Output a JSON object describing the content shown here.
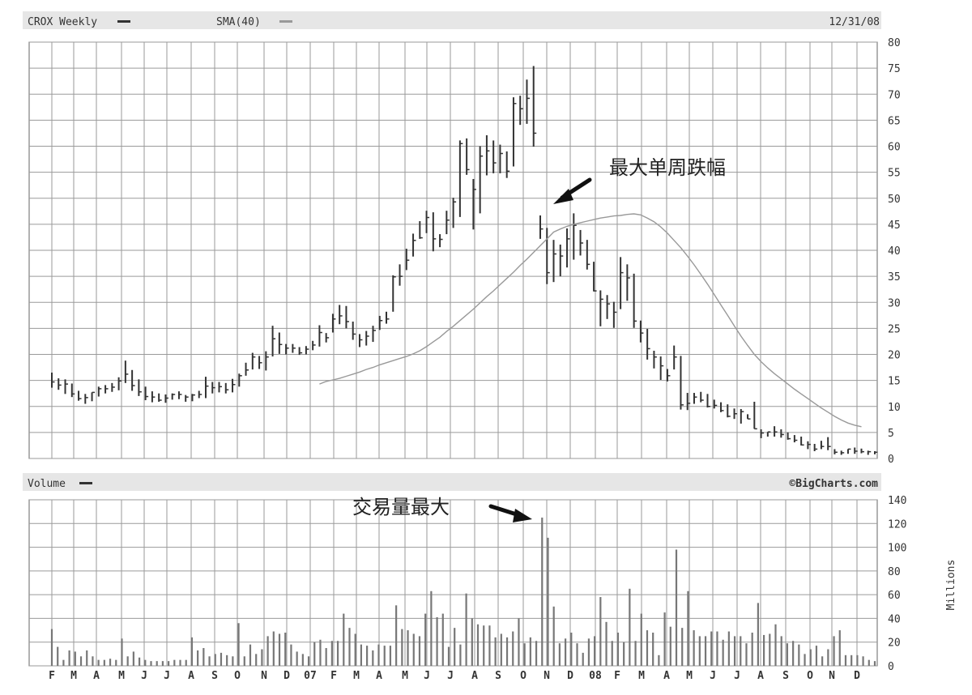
{
  "chart_data": [
    {
      "type": "ohlc",
      "title": "CROX Weekly",
      "date": "12/31/08",
      "indicator": "SMA(40)",
      "ylim": [
        0,
        80
      ],
      "y_ticks": [
        0,
        5,
        10,
        15,
        20,
        25,
        30,
        35,
        40,
        45,
        50,
        55,
        60,
        65,
        70,
        75,
        80
      ],
      "x_month_labels": [
        "F",
        "M",
        "A",
        "M",
        "J",
        "J",
        "A",
        "S",
        "O",
        "N",
        "D",
        "07",
        "F",
        "M",
        "A",
        "M",
        "J",
        "J",
        "A",
        "S",
        "O",
        "N",
        "D",
        "08",
        "F",
        "M",
        "A",
        "M",
        "J",
        "J",
        "A",
        "S",
        "O",
        "N",
        "D"
      ],
      "grid": true,
      "series": [
        {
          "name": "CROX Weekly",
          "high": [
            16.5,
            15.4,
            15.2,
            14.4,
            13.0,
            12.4,
            12.7,
            13.8,
            14.1,
            14.5,
            15.6,
            18.8,
            17.0,
            15.2,
            13.8,
            12.9,
            12.5,
            12.3,
            12.5,
            12.9,
            12.2,
            12.4,
            13.0,
            15.7,
            14.7,
            14.7,
            14.5,
            15.3,
            16.3,
            18.4,
            20.3,
            19.7,
            20.6,
            25.5,
            24.2,
            22.0,
            22.0,
            21.4,
            21.6,
            22.6,
            25.6,
            24.1,
            27.8,
            29.5,
            29.3,
            26.3,
            23.9,
            24.5,
            25.5,
            27.4,
            28.2,
            35.2,
            37.3,
            40.3,
            43.2,
            45.6,
            47.6,
            47.3,
            43.1,
            47.6,
            50.1,
            61.1,
            61.5,
            53.7,
            60.0,
            62.1,
            61.1,
            60.3,
            59.0,
            69.4,
            69.7,
            72.8,
            75.4,
            46.7,
            44.3,
            42.0,
            41.1,
            44.2,
            47.1,
            43.9,
            42.0,
            37.8,
            32.3,
            31.4,
            30.1,
            38.7,
            37.3,
            35.5,
            26.5,
            24.9,
            20.7,
            19.6,
            17.2,
            21.7,
            19.7,
            12.6,
            12.6,
            12.8,
            12.4,
            11.3,
            10.8,
            10.4,
            9.6,
            9.5,
            8.5,
            10.9,
            5.6,
            5.1,
            6.2,
            5.6,
            5.0,
            4.5,
            4.2,
            3.3,
            2.8,
            3.4,
            4.1,
            1.8,
            1.5,
            1.8,
            2.1,
            1.9,
            1.5,
            1.4
          ],
          "low": [
            13.6,
            13.2,
            12.4,
            11.8,
            11.1,
            10.5,
            11.0,
            11.9,
            12.5,
            12.8,
            13.1,
            14.5,
            13.0,
            12.0,
            11.2,
            10.8,
            10.9,
            10.7,
            11.3,
            11.4,
            10.9,
            11.0,
            11.6,
            11.6,
            12.5,
            12.7,
            12.5,
            12.7,
            13.8,
            15.9,
            17.1,
            17.2,
            16.9,
            19.6,
            20.1,
            20.0,
            20.3,
            19.9,
            20.0,
            20.8,
            21.5,
            22.3,
            24.2,
            25.8,
            25.0,
            22.8,
            21.4,
            21.7,
            22.4,
            24.7,
            25.9,
            28.2,
            33.2,
            36.2,
            38.8,
            42.2,
            43.3,
            39.8,
            40.6,
            43.1,
            44.3,
            46.4,
            54.5,
            44.0,
            47.1,
            54.4,
            54.8,
            54.8,
            53.9,
            56.1,
            64.1,
            64.3,
            59.9,
            42.2,
            33.5,
            33.9,
            35.0,
            36.7,
            38.2,
            39.0,
            36.3,
            32.1,
            25.4,
            26.8,
            25.1,
            28.7,
            30.3,
            25.1,
            22.3,
            19.0,
            17.3,
            15.1,
            14.8,
            17.1,
            9.4,
            9.3,
            10.5,
            10.8,
            9.8,
            9.6,
            8.9,
            7.9,
            7.6,
            6.7,
            7.6,
            5.7,
            3.9,
            4.2,
            4.2,
            4.0,
            3.6,
            3.1,
            2.5,
            1.8,
            1.4,
            1.8,
            1.6,
            0.8,
            0.7,
            0.9,
            0.9,
            1.0,
            0.7,
            0.8
          ],
          "close": [
            14.7,
            14.1,
            14.3,
            12.4,
            11.5,
            11.7,
            12.7,
            13.4,
            13.4,
            13.7,
            14.9,
            16.2,
            14.0,
            12.8,
            11.9,
            11.8,
            11.2,
            11.6,
            12.3,
            12.3,
            11.8,
            12.2,
            12.3,
            13.9,
            13.6,
            13.8,
            13.2,
            14.2,
            15.9,
            17.0,
            19.5,
            18.4,
            19.5,
            23.0,
            21.9,
            21.2,
            21.2,
            20.3,
            21.0,
            21.8,
            24.2,
            23.2,
            26.8,
            27.4,
            26.3,
            23.9,
            22.8,
            23.5,
            24.6,
            26.5,
            26.8,
            34.9,
            35.0,
            38.1,
            41.9,
            42.4,
            46.3,
            42.2,
            42.1,
            45.8,
            49.3,
            60.5,
            55.5,
            51.7,
            58.1,
            59.1,
            56.8,
            58.6,
            55.2,
            68.2,
            67.2,
            69.2,
            62.5,
            44.1,
            35.7,
            39.3,
            38.9,
            42.2,
            44.8,
            41.4,
            37.3,
            32.2,
            30.6,
            29.7,
            28.1,
            35.7,
            34.7,
            26.4,
            24.1,
            21.1,
            19.5,
            17.8,
            15.9,
            19.5,
            10.3,
            10.6,
            11.8,
            11.2,
            10.0,
            10.2,
            9.2,
            8.1,
            8.6,
            9.0,
            7.6,
            5.7,
            4.9,
            5.1,
            5.1,
            4.6,
            3.8,
            3.5,
            2.6,
            2.7,
            1.8,
            2.3,
            2.3,
            1.2,
            1.1,
            1.8,
            1.4,
            1.3,
            1.3,
            1.2
          ]
        },
        {
          "name": "SMA(40)",
          "start_week": 40,
          "values": [
            14.3,
            14.8,
            15.1,
            15.4,
            15.8,
            16.2,
            16.6,
            17.1,
            17.5,
            18.0,
            18.4,
            18.8,
            19.2,
            19.6,
            20.1,
            20.7,
            21.5,
            22.4,
            23.3,
            24.4,
            25.4,
            26.5,
            27.6,
            28.7,
            29.9,
            31.1,
            32.2,
            33.4,
            34.6,
            35.8,
            37.1,
            38.3,
            39.6,
            40.9,
            42.2,
            43.5,
            44.1,
            44.6,
            45.0,
            45.3,
            45.6,
            45.9,
            46.2,
            46.4,
            46.6,
            46.7,
            46.9,
            47.0,
            46.8,
            46.2,
            45.5,
            44.5,
            43.3,
            41.9,
            40.5,
            38.9,
            37.2,
            35.4,
            33.5,
            31.5,
            29.5,
            27.5,
            25.5,
            23.5,
            21.7,
            20.0,
            18.6,
            17.4,
            16.3,
            15.3,
            14.3,
            13.3,
            12.4,
            11.5,
            10.6,
            9.7,
            8.9,
            8.1,
            7.4,
            6.8,
            6.4,
            6.1
          ]
        }
      ],
      "annotation": "最大单周跌幅"
    },
    {
      "type": "bar",
      "title": "Volume",
      "ylabel": "Millions",
      "ylim": [
        0,
        140
      ],
      "y_ticks": [
        0,
        20,
        40,
        60,
        80,
        100,
        120,
        140
      ],
      "grid": true,
      "values": [
        31,
        16,
        5,
        13,
        12,
        8,
        13,
        8,
        5,
        5,
        6,
        5,
        23,
        8,
        12,
        7,
        5,
        4,
        4,
        4,
        4,
        5,
        5,
        5,
        24,
        13,
        15,
        8,
        10,
        11,
        9,
        8,
        36,
        8,
        18,
        10,
        14,
        25,
        29,
        27,
        28,
        18,
        12,
        10,
        8,
        20,
        22,
        15,
        21,
        21,
        44,
        32,
        27,
        18,
        17,
        13,
        18,
        17,
        17,
        51,
        31,
        30,
        27,
        25,
        44,
        63,
        41,
        44,
        16,
        32,
        18,
        61,
        40,
        35,
        34,
        34,
        24,
        27,
        24,
        29,
        40,
        19,
        24,
        21,
        125,
        108,
        50,
        19,
        23,
        28,
        19,
        11,
        23,
        25,
        58,
        37,
        21,
        28,
        20,
        65,
        21,
        44,
        30,
        28,
        9,
        45,
        33,
        98,
        32,
        63,
        30,
        25,
        25,
        29,
        29,
        22,
        29,
        25,
        25,
        19,
        28,
        53,
        26,
        27,
        35,
        25,
        19,
        21,
        18,
        10,
        14,
        17,
        8,
        14,
        25,
        30,
        9,
        9,
        9,
        8,
        5,
        4
      ],
      "annotation": "交易量最大"
    }
  ],
  "footer": {
    "credit": "©BigCharts.com"
  },
  "colors": {
    "background": "#ffffff",
    "header_band": "#e6e6e6",
    "grid": "#9a9a9a",
    "bars": "#333333",
    "sma": "#999999",
    "volume_bars": "#777777"
  }
}
